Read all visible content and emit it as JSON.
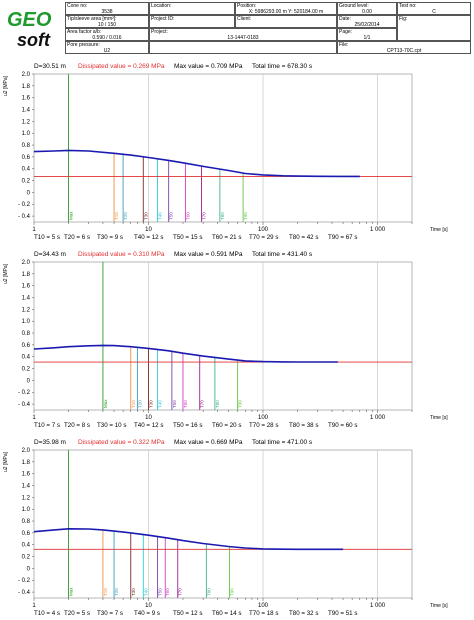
{
  "header": {
    "logo": "GEO soft",
    "cone_no": {
      "label": "Cone no:",
      "value": "3538"
    },
    "tip_area": {
      "label": "Tip/sleeve area [mm²]:",
      "value": "10 / 150"
    },
    "area_factor": {
      "label": "Area factor a/b:",
      "value": "0.590 / 0.016"
    },
    "pore_pressure": {
      "label": "Pore pressure:",
      "value": "U2"
    },
    "location": {
      "label": "Location:",
      "value": ""
    },
    "project_id": {
      "label": "Project ID:",
      "value": ""
    },
    "project": {
      "label": "Project:",
      "value": "13-1447-0183"
    },
    "position": {
      "label": "Position:",
      "value": "X: 5986293.00 m   Y: 520184.00 m"
    },
    "client": {
      "label": "Client:",
      "value": ""
    },
    "ground_level": {
      "label": "Ground level:",
      "value": "0.00"
    },
    "date": {
      "label": "Date:",
      "value": "25/02/2014"
    },
    "page": {
      "label": "Page:",
      "value": "1/1"
    },
    "file": {
      "label": "File:",
      "value": "CPT13-70C.cpt"
    },
    "test_no": {
      "label": "Test no:",
      "value": "C"
    },
    "fig": {
      "label": "Fig:",
      "value": ""
    }
  },
  "colors": {
    "curve": "#1a1ab0",
    "dissipated_line": "#e03030",
    "max_line": "#2a9a2a",
    "t10": "#e89040",
    "t20": "#3aa0b8",
    "t30": "#7a2a2a",
    "t40": "#30c8d8",
    "t50": "#7a40b0",
    "t60": "#d040c0",
    "t70": "#a02090",
    "t80": "#40b090",
    "t90": "#60c840"
  },
  "chart_data": [
    {
      "type": "line",
      "depth_label": "D=30.51 m",
      "dissipated_label": "Dissipated value = 0.269 MPa",
      "max_label": "Max value = 0.709 MPa",
      "total_label": "Total time = 678.30 s",
      "ylabel": "u2 [MPa]",
      "xlabel": "Time [s]",
      "xscale": "log",
      "xlim": [
        1,
        2000
      ],
      "ylim": [
        -0.5,
        2.0
      ],
      "yticks": [
        "2.0",
        "1.8",
        "1.6",
        "1.4",
        "1.2",
        "1.0",
        "0.8",
        "0.6",
        "0.4",
        "0.2",
        "0",
        "- 0.2",
        "- 0.4"
      ],
      "xticks": [
        "1",
        "10",
        "100",
        "1 000"
      ],
      "dissipated": 0.269,
      "max_time": 2,
      "max": 0.709,
      "curve": {
        "x": [
          1,
          1.5,
          2,
          3,
          5,
          7,
          10,
          15,
          20,
          30,
          50,
          70,
          100,
          150,
          200,
          300,
          500,
          700
        ],
        "y": [
          0.69,
          0.7,
          0.709,
          0.7,
          0.66,
          0.63,
          0.59,
          0.54,
          0.5,
          0.44,
          0.37,
          0.32,
          0.295,
          0.28,
          0.275,
          0.272,
          0.27,
          0.27
        ]
      },
      "markers": [
        {
          "label": "Max",
          "x": 2
        },
        {
          "label": "T10",
          "x": 5
        },
        {
          "label": "T20",
          "x": 6
        },
        {
          "label": "T30",
          "x": 9
        },
        {
          "label": "T40",
          "x": 12
        },
        {
          "label": "T50",
          "x": 15
        },
        {
          "label": "T60",
          "x": 21
        },
        {
          "label": "T70",
          "x": 29
        },
        {
          "label": "T80",
          "x": 42
        },
        {
          "label": "T90",
          "x": 67
        }
      ],
      "summary": [
        "T10 = 5 s",
        "T20 = 6 s",
        "T30 = 9 s",
        "T40 = 12 s",
        "T50 = 15 s",
        "T60 = 21 s",
        "T70 = 29 s",
        "T80 = 42 s",
        "T90 = 67 s"
      ]
    },
    {
      "type": "line",
      "depth_label": "D=34.43 m",
      "dissipated_label": "Dissipated value = 0.310 MPa",
      "max_label": "Max value = 0.591 MPa",
      "total_label": "Total time = 431.40 s",
      "ylabel": "u2 [MPa]",
      "xlabel": "Time [s]",
      "xscale": "log",
      "xlim": [
        1,
        2000
      ],
      "ylim": [
        -0.5,
        2.0
      ],
      "yticks": [
        "2.0",
        "1.8",
        "1.6",
        "1.4",
        "1.2",
        "1.0",
        "0.8",
        "0.6",
        "0.4",
        "0.2",
        "0",
        "- 0.2",
        "- 0.4"
      ],
      "xticks": [
        "1",
        "10",
        "100",
        "1 000"
      ],
      "dissipated": 0.31,
      "max_time": 4,
      "max": 0.591,
      "curve": {
        "x": [
          1,
          1.5,
          2,
          3,
          4,
          5,
          7,
          10,
          15,
          20,
          30,
          50,
          70,
          100,
          150,
          200,
          300,
          450
        ],
        "y": [
          0.53,
          0.55,
          0.57,
          0.585,
          0.591,
          0.588,
          0.57,
          0.54,
          0.5,
          0.46,
          0.41,
          0.36,
          0.33,
          0.318,
          0.313,
          0.311,
          0.31,
          0.31
        ]
      },
      "markers": [
        {
          "label": "Max",
          "x": 4
        },
        {
          "label": "T10",
          "x": 7
        },
        {
          "label": "T20",
          "x": 8
        },
        {
          "label": "T30",
          "x": 10
        },
        {
          "label": "T40",
          "x": 12
        },
        {
          "label": "T50",
          "x": 16
        },
        {
          "label": "T60",
          "x": 20
        },
        {
          "label": "T70",
          "x": 28
        },
        {
          "label": "T80",
          "x": 38
        },
        {
          "label": "T90",
          "x": 60
        }
      ],
      "summary": [
        "T10 = 7 s",
        "T20 = 8 s",
        "T30 = 10 s",
        "T40 = 12 s",
        "T50 = 16 s",
        "T60 = 20 s",
        "T70 = 28 s",
        "T80 = 38 s",
        "T90 = 60 s"
      ]
    },
    {
      "type": "line",
      "depth_label": "D=35.98 m",
      "dissipated_label": "Dissipated value = 0.322 MPa",
      "max_label": "Max value = 0.669 MPa",
      "total_label": "Total time = 471.00 s",
      "ylabel": "u2 [MPa]",
      "xlabel": "Time [s]",
      "xscale": "log",
      "xlim": [
        1,
        2000
      ],
      "ylim": [
        -0.5,
        2.0
      ],
      "yticks": [
        "2.0",
        "1.8",
        "1.6",
        "1.4",
        "1.2",
        "1.0",
        "0.8",
        "0.6",
        "0.4",
        "0.2",
        "0",
        "- 0.2",
        "- 0.4"
      ],
      "xticks": [
        "1",
        "10",
        "100",
        "1 000"
      ],
      "dissipated": 0.322,
      "max_time": 2,
      "max": 0.669,
      "curve": {
        "x": [
          1,
          1.5,
          2,
          3,
          4,
          5,
          7,
          10,
          15,
          20,
          30,
          50,
          70,
          100,
          150,
          200,
          300,
          500
        ],
        "y": [
          0.62,
          0.65,
          0.669,
          0.665,
          0.65,
          0.63,
          0.6,
          0.56,
          0.51,
          0.47,
          0.42,
          0.37,
          0.345,
          0.33,
          0.325,
          0.323,
          0.322,
          0.322
        ]
      },
      "markers": [
        {
          "label": "Max",
          "x": 2
        },
        {
          "label": "T10",
          "x": 4
        },
        {
          "label": "T20",
          "x": 5
        },
        {
          "label": "T30",
          "x": 7
        },
        {
          "label": "T40",
          "x": 9
        },
        {
          "label": "T50",
          "x": 12
        },
        {
          "label": "T60",
          "x": 14
        },
        {
          "label": "T70",
          "x": 18
        },
        {
          "label": "T80",
          "x": 32
        },
        {
          "label": "T90",
          "x": 51
        }
      ],
      "summary": [
        "T10 = 4 s",
        "T20 = 5 s",
        "T30 = 7 s",
        "T40 = 9 s",
        "T50 = 12 s",
        "T60 = 14 s",
        "T70 = 18 s",
        "T80 = 32 s",
        "T90 = 51 s"
      ]
    }
  ]
}
